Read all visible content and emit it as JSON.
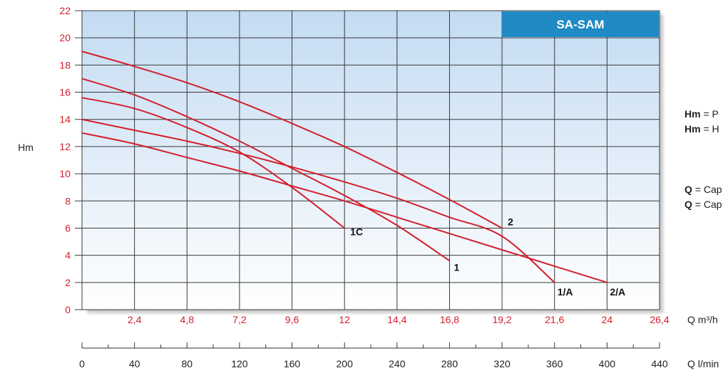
{
  "chart_data": {
    "type": "line",
    "title": "SA-SAM",
    "ylabel": "Hm",
    "ylim": [
      0,
      22
    ],
    "yticks": [
      "0",
      "2",
      "4",
      "6",
      "8",
      "10",
      "12",
      "14",
      "16",
      "18",
      "20",
      "22"
    ],
    "xlabel": "Q m³/h",
    "xlim": [
      0,
      26.4
    ],
    "xticks": [
      "2,4",
      "4,8",
      "7,2",
      "9,6",
      "12",
      "14,4",
      "16,8",
      "19,2",
      "21,6",
      "24",
      "26,4"
    ],
    "x2label": "Q l/min",
    "x2lim": [
      0,
      440
    ],
    "x2ticks": [
      "0",
      "40",
      "80",
      "120",
      "160",
      "200",
      "240",
      "280",
      "320",
      "360",
      "400",
      "440"
    ],
    "grid": true,
    "series": [
      {
        "name": "1C",
        "x": [
          0,
          2.4,
          4.8,
          7.2,
          9.6,
          12
        ],
        "y": [
          15.6,
          14.8,
          13.4,
          11.6,
          9.0,
          6.0
        ]
      },
      {
        "name": "1",
        "x": [
          0,
          2.4,
          4.8,
          7.2,
          9.6,
          12,
          14.4,
          16.8
        ],
        "y": [
          17.0,
          15.8,
          14.2,
          12.4,
          10.4,
          8.4,
          6.2,
          3.6
        ]
      },
      {
        "name": "2",
        "x": [
          0,
          2.4,
          4.8,
          7.2,
          9.6,
          12,
          14.4,
          16.8,
          19.2
        ],
        "y": [
          19.0,
          17.9,
          16.7,
          15.3,
          13.7,
          12.0,
          10.1,
          8.1,
          6.0
        ]
      },
      {
        "name": "1/A",
        "x": [
          0,
          2.4,
          4.8,
          7.2,
          9.6,
          12,
          14.4,
          16.8,
          19.2,
          21.6
        ],
        "y": [
          14.0,
          13.2,
          12.4,
          11.5,
          10.5,
          9.4,
          8.2,
          6.8,
          5.4,
          2.0
        ]
      },
      {
        "name": "2/A",
        "x": [
          0,
          2.4,
          4.8,
          7.2,
          9.6,
          12,
          14.4,
          16.8,
          19.2,
          21.6,
          24
        ],
        "y": [
          13.0,
          12.2,
          11.2,
          10.2,
          9.1,
          8.0,
          6.8,
          5.6,
          4.4,
          3.2,
          2.0
        ]
      }
    ],
    "colors": {
      "curve": "#d21f2b",
      "plot_top": "#c8def3",
      "plot_bottom": "#ffffff",
      "title_box": "#1f8ac4",
      "grid": "#3a3a3a"
    }
  },
  "legend": {
    "hm1_key": "Hm",
    "hm1_text": " = P",
    "hm2_key": "Hm",
    "hm2_text": " = H",
    "q1_key": "Q",
    "q1_text": " = Cap",
    "q2_key": "Q",
    "q2_text": " = Cap"
  }
}
